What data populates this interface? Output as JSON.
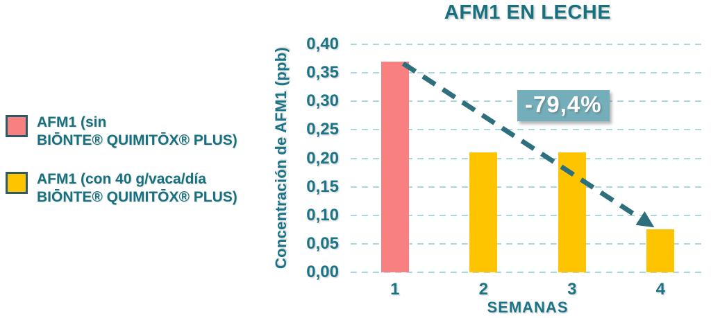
{
  "title": "AFM1 EN LECHE",
  "legend": {
    "items": [
      {
        "swatch_color": "#F98080",
        "lines": [
          "AFM1 (sin",
          "BIŌNTE® QUIMITŌX® PLUS)"
        ]
      },
      {
        "swatch_color": "#FFC400",
        "lines": [
          "AFM1 (con 40 g/vaca/día",
          "BIŌNTE® QUIMITŌX® PLUS)"
        ]
      }
    ]
  },
  "annotation": {
    "text": "-79,4%"
  },
  "chart_data": {
    "type": "bar",
    "title": "AFM1 EN LECHE",
    "xlabel": "SEMANAS",
    "ylabel": "Concentración de AFM1 (ppb)",
    "categories": [
      "1",
      "2",
      "3",
      "4"
    ],
    "values": [
      0.37,
      0.21,
      0.21,
      0.076
    ],
    "bar_colors": [
      "#F98080",
      "#FFC400",
      "#FFC400",
      "#FFC400"
    ],
    "series_names": [
      "AFM1 (sin BIŌNTE® QUIMITŌX® PLUS)",
      "AFM1 (con 40 g/vaca/día BIŌNTE® QUIMITŌX® PLUS)"
    ],
    "ylim": [
      0,
      0.4
    ],
    "ytick_values": [
      0,
      0.05,
      0.1,
      0.15,
      0.2,
      0.25,
      0.3,
      0.35,
      0.4
    ],
    "ytick_labels": [
      "0,00",
      "0,05",
      "0,10",
      "0,15",
      "0,20",
      "0,25",
      "0,30",
      "0,35",
      "0,40"
    ],
    "grid": "horizontal-dashed",
    "legend_position": "left",
    "annotation": {
      "text": "-79,4%",
      "from_category": "1",
      "to_category": "4",
      "style": "dashed-arrow"
    }
  },
  "colors": {
    "teal_text": "#1A7486",
    "title_text": "#17707E",
    "gridline": "#ABD8E0",
    "arrow": "#2E6F7D",
    "annotation_bg": "#74AEBA",
    "annotation_text": "#FFFFFF",
    "swatch_border": "#2B5B66",
    "bar_pink": "#F98080",
    "bar_yellow": "#FFC400",
    "background": "#FFFFFF"
  }
}
